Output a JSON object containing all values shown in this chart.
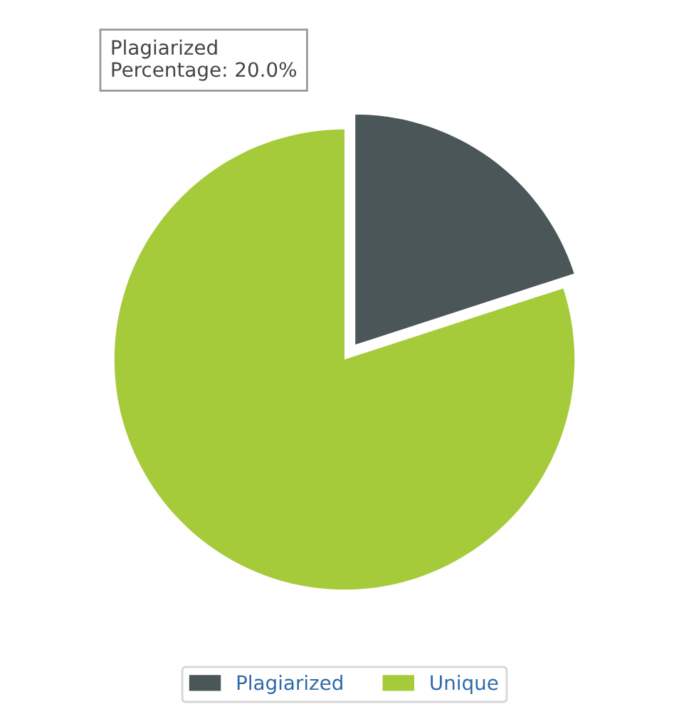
{
  "chart_data": {
    "type": "pie",
    "categories": [
      "Plagiarized",
      "Unique"
    ],
    "values": [
      20,
      80
    ],
    "colors": [
      "#4b5659",
      "#a6cb3a"
    ],
    "annotations": [
      "Plagiarized",
      "Percentage: 20.0%"
    ],
    "legend": "bottom"
  }
}
